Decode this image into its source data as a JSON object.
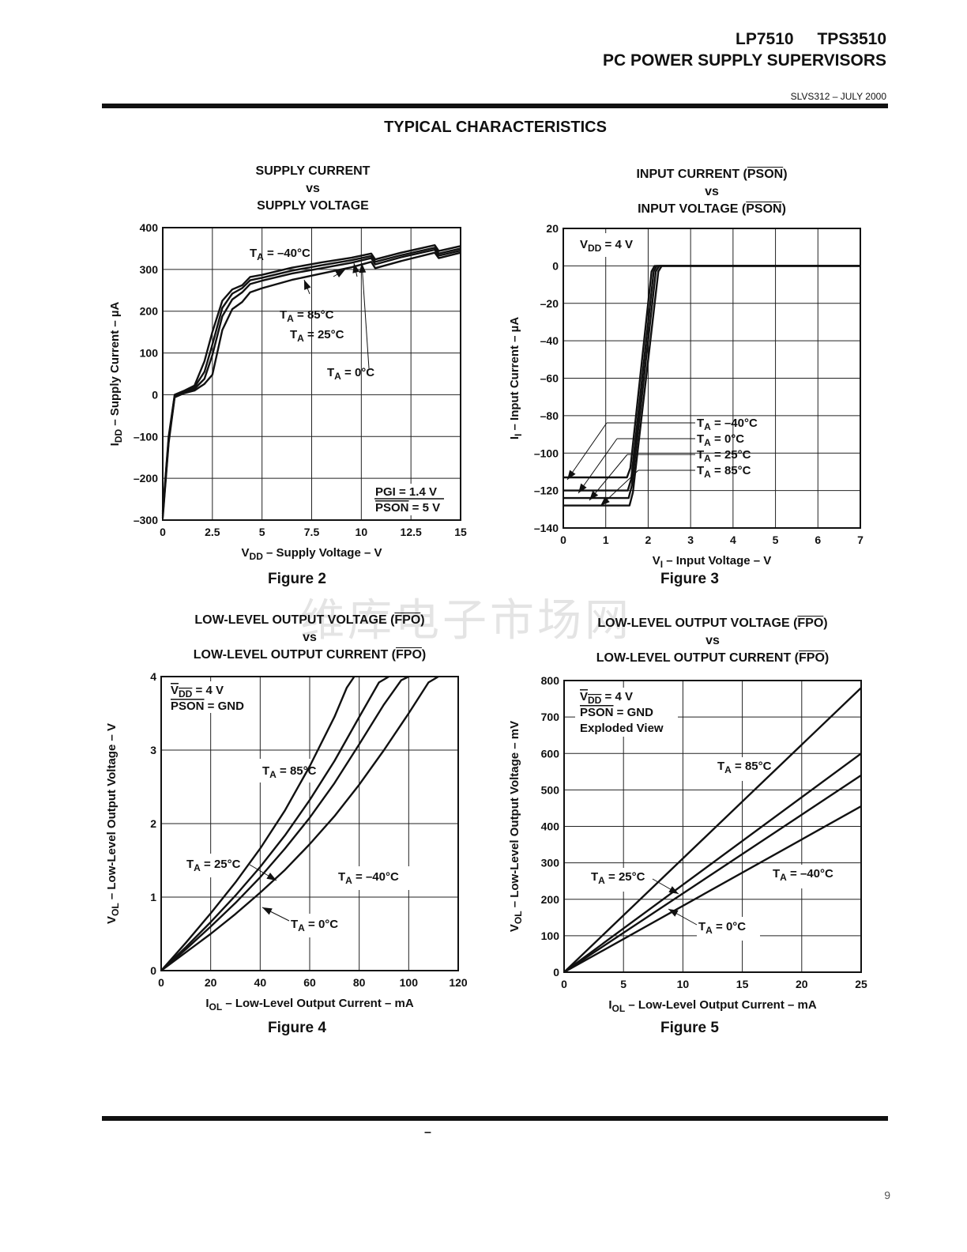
{
  "header": {
    "part_a": "LP7510",
    "part_b": "TPS3510",
    "subtitle": "PC POWER SUPPLY SUPERVISORS",
    "doc_id": "SLVS312 – JULY 2000"
  },
  "section_title": "TYPICAL CHARACTERISTICS",
  "footer": {
    "dash": "–",
    "page_number": "9"
  },
  "watermark": "维库电子市场网",
  "colors": {
    "ink": "#111111",
    "grid": "#222222",
    "paper": "#ffffff"
  },
  "chart_data": [
    {
      "id": "fig2",
      "figure_label": "Figure 2",
      "type": "line",
      "title": {
        "line1": "SUPPLY CURRENT",
        "line2": "vs",
        "line3": "SUPPLY VOLTAGE"
      },
      "xlabel": {
        "pre": "V",
        "sub": "DD",
        "post": " – Supply Voltage – V"
      },
      "ylabel": {
        "pre": "I",
        "sub": "DD",
        "post": " – Supply Current – µA"
      },
      "xlim": [
        0,
        15
      ],
      "ylim": [
        -300,
        400
      ],
      "xticks": [
        "0",
        "2.5",
        "5",
        "7.5",
        "10",
        "12.5",
        "15"
      ],
      "yticks": [
        "400",
        "300",
        "200",
        "100",
        "0",
        "–100",
        "–200",
        "–300"
      ],
      "conditions": [
        {
          "text": "PGI = 1.4 V",
          "overline": ""
        },
        {
          "text": " = 5 V",
          "overline": "PSON"
        }
      ],
      "series": [
        {
          "name": "TA = –40°C",
          "x": [
            0,
            0.3,
            0.6,
            1.1,
            1.6,
            2.1,
            2.5,
            3.0,
            3.5,
            4.0,
            4.4,
            5.0,
            6.5,
            8.0,
            9.5,
            10.5,
            10.7,
            12.0,
            13.7,
            13.9,
            15
          ],
          "y": [
            -280,
            -100,
            0,
            10,
            22,
            80,
            150,
            225,
            252,
            262,
            282,
            287,
            304,
            317,
            328,
            338,
            324,
            340,
            358,
            344,
            356
          ]
        },
        {
          "name": "TA = 0°C",
          "x": [
            0,
            0.3,
            0.6,
            1.1,
            1.6,
            2.1,
            2.5,
            3.0,
            3.5,
            4.0,
            4.4,
            5.0,
            6.5,
            8.0,
            9.5,
            10.5,
            10.7,
            12.0,
            13.7,
            13.9,
            15
          ],
          "y": [
            -285,
            -105,
            -2,
            8,
            18,
            55,
            120,
            208,
            242,
            255,
            274,
            280,
            297,
            310,
            322,
            332,
            318,
            334,
            352,
            338,
            350
          ]
        },
        {
          "name": "TA = 25°C",
          "x": [
            0,
            0.3,
            0.6,
            1.1,
            1.6,
            2.1,
            2.5,
            3.0,
            3.5,
            4.0,
            4.4,
            5.0,
            6.5,
            8.0,
            9.5,
            10.5,
            10.7,
            12.0,
            13.7,
            13.9,
            15
          ],
          "y": [
            -290,
            -110,
            -4,
            6,
            14,
            38,
            95,
            188,
            228,
            245,
            265,
            273,
            290,
            303,
            316,
            327,
            312,
            329,
            347,
            333,
            345
          ]
        },
        {
          "name": "TA = 85°C",
          "x": [
            0,
            0.3,
            0.6,
            1.1,
            1.6,
            2.1,
            2.5,
            3.0,
            3.5,
            4.0,
            4.4,
            5.0,
            6.5,
            8.0,
            9.5,
            10.5,
            10.7,
            12.0,
            13.7,
            13.9,
            15
          ],
          "y": [
            -295,
            -115,
            -6,
            4,
            10,
            26,
            48,
            155,
            205,
            222,
            245,
            255,
            275,
            290,
            305,
            318,
            303,
            320,
            340,
            327,
            340
          ]
        }
      ],
      "labels": [
        {
          "pre": "T",
          "sub": "A",
          "post": " = –40°C"
        },
        {
          "pre": "T",
          "sub": "A",
          "post": " = 85°C"
        },
        {
          "pre": "T",
          "sub": "A",
          "post": " = 25°C"
        },
        {
          "pre": "T",
          "sub": "A",
          "post": " = 0°C"
        }
      ]
    },
    {
      "id": "fig3",
      "figure_label": "Figure 3",
      "type": "line",
      "title": {
        "line1a": "INPUT CURRENT (",
        "line1o": "PSON",
        "line1b": ")",
        "line2": "vs",
        "line3a": "INPUT VOLTAGE (",
        "line3o": "PSON",
        "line3b": ")"
      },
      "xlabel": {
        "pre": "V",
        "sub": "I",
        "post": " – Input Voltage – V"
      },
      "ylabel": {
        "pre": "I",
        "sub": "I",
        "post": " – Input Current – µA"
      },
      "xlim": [
        0,
        7
      ],
      "ylim": [
        -140,
        20
      ],
      "xticks": [
        "0",
        "1",
        "2",
        "3",
        "4",
        "5",
        "6",
        "7"
      ],
      "yticks": [
        "20",
        "0",
        "–20",
        "–40",
        "–60",
        "–80",
        "–100",
        "–120",
        "–140"
      ],
      "conditions": [
        {
          "pre": "V",
          "sub": "DD",
          "post": " = 4 V"
        }
      ],
      "series": [
        {
          "name": "TA = –40°C",
          "x": [
            0,
            1.5,
            1.58,
            2.08,
            2.15,
            7
          ],
          "y": [
            -113,
            -113,
            -108,
            -3,
            0,
            0
          ]
        },
        {
          "name": "TA = 0°C",
          "x": [
            0,
            1.52,
            1.6,
            2.13,
            2.2,
            7
          ],
          "y": [
            -120,
            -120,
            -114,
            -3,
            0,
            0
          ]
        },
        {
          "name": "TA = 25°C",
          "x": [
            0,
            1.54,
            1.62,
            2.18,
            2.26,
            7
          ],
          "y": [
            -124,
            -124,
            -117,
            -3,
            0,
            0
          ]
        },
        {
          "name": "TA = 85°C",
          "x": [
            0,
            1.56,
            1.64,
            2.24,
            2.32,
            7
          ],
          "y": [
            -128,
            -128,
            -121,
            -3,
            0,
            0
          ]
        }
      ],
      "labels": [
        {
          "pre": "T",
          "sub": "A",
          "post": " = –40°C"
        },
        {
          "pre": "T",
          "sub": "A",
          "post": " = 0°C"
        },
        {
          "pre": "T",
          "sub": "A",
          "post": " = 25°C"
        },
        {
          "pre": "T",
          "sub": "A",
          "post": " = 85°C"
        }
      ]
    },
    {
      "id": "fig4",
      "figure_label": "Figure 4",
      "type": "line",
      "title": {
        "line1a": "LOW-LEVEL OUTPUT VOLTAGE (",
        "line1o": "FPO",
        "line1b": ")",
        "line2": "vs",
        "line3a": "LOW-LEVEL OUTPUT CURRENT (",
        "line3o": "FPO",
        "line3b": ")"
      },
      "xlabel": {
        "pre": "I",
        "sub": "OL",
        "post": " – Low-Level Output Current – mA"
      },
      "ylabel": {
        "pre": "V",
        "sub": "OL",
        "post": " – Low-Level Output Voltage – V"
      },
      "xlim": [
        0,
        120
      ],
      "ylim": [
        0,
        4
      ],
      "xticks": [
        "0",
        "20",
        "40",
        "60",
        "80",
        "100",
        "120"
      ],
      "yticks": [
        "4",
        "3",
        "2",
        "1",
        "0"
      ],
      "conditions": [
        {
          "pre": "V",
          "sub": "DD",
          "post": " = 4 V",
          "overline": true
        },
        {
          "text": " = GND",
          "overline": "PSON"
        }
      ],
      "series": [
        {
          "name": "TA = 85°C",
          "x": [
            0,
            10,
            20,
            30,
            40,
            50,
            60,
            70,
            75,
            78
          ],
          "y": [
            0,
            0.38,
            0.78,
            1.2,
            1.66,
            2.18,
            2.78,
            3.45,
            3.85,
            4.0
          ]
        },
        {
          "name": "TA = 25°C",
          "x": [
            0,
            10,
            20,
            30,
            40,
            50,
            60,
            70,
            80,
            88,
            92
          ],
          "y": [
            0,
            0.32,
            0.66,
            1.02,
            1.41,
            1.84,
            2.32,
            2.85,
            3.45,
            3.92,
            4.0
          ]
        },
        {
          "name": "TA = 0°C",
          "x": [
            0,
            10,
            20,
            30,
            40,
            50,
            60,
            70,
            80,
            90,
            97,
            100
          ],
          "y": [
            0,
            0.29,
            0.6,
            0.92,
            1.27,
            1.66,
            2.08,
            2.55,
            3.08,
            3.62,
            3.95,
            4.0
          ]
        },
        {
          "name": "TA = –40°C",
          "x": [
            0,
            10,
            20,
            30,
            40,
            50,
            60,
            70,
            80,
            90,
            100,
            108,
            112
          ],
          "y": [
            0,
            0.25,
            0.5,
            0.77,
            1.06,
            1.37,
            1.72,
            2.1,
            2.53,
            3.0,
            3.5,
            3.92,
            4.0
          ]
        }
      ],
      "labels": [
        {
          "pre": "T",
          "sub": "A",
          "post": " = 85°C"
        },
        {
          "pre": "T",
          "sub": "A",
          "post": " = 25°C"
        },
        {
          "pre": "T",
          "sub": "A",
          "post": " = –40°C"
        },
        {
          "pre": "T",
          "sub": "A",
          "post": " = 0°C"
        }
      ]
    },
    {
      "id": "fig5",
      "figure_label": "Figure 5",
      "type": "line",
      "title": {
        "line1a": "LOW-LEVEL OUTPUT VOLTAGE (",
        "line1o": "FPO",
        "line1b": ")",
        "line2": "vs",
        "line3a": "LOW-LEVEL OUTPUT CURRENT (",
        "line3o": "FPO",
        "line3b": ")"
      },
      "xlabel": {
        "pre": "I",
        "sub": "OL",
        "post": " – Low-Level Output Current – mA"
      },
      "ylabel": {
        "pre": "V",
        "sub": "OL",
        "post": " – Low-Level Output Voltage – mV"
      },
      "xlim": [
        0,
        25
      ],
      "ylim": [
        0,
        800
      ],
      "xticks": [
        "0",
        "5",
        "10",
        "15",
        "20",
        "25"
      ],
      "yticks": [
        "800",
        "700",
        "600",
        "500",
        "400",
        "300",
        "200",
        "100",
        "0"
      ],
      "conditions": [
        {
          "pre": "V",
          "sub": "DD",
          "post": " = 4 V",
          "overline": true
        },
        {
          "text": " = GND",
          "overline": "PSON"
        },
        {
          "text": "Exploded View"
        }
      ],
      "series": [
        {
          "name": "TA = 85°C",
          "x": [
            0,
            25
          ],
          "y": [
            0,
            780
          ]
        },
        {
          "name": "TA = 25°C",
          "x": [
            0,
            25
          ],
          "y": [
            0,
            600
          ]
        },
        {
          "name": "TA = 0°C",
          "x": [
            0,
            25
          ],
          "y": [
            0,
            540
          ]
        },
        {
          "name": "TA = –40°C",
          "x": [
            0,
            25
          ],
          "y": [
            0,
            455
          ]
        }
      ],
      "labels": [
        {
          "pre": "T",
          "sub": "A",
          "post": " = 85°C"
        },
        {
          "pre": "T",
          "sub": "A",
          "post": " = 25°C"
        },
        {
          "pre": "T",
          "sub": "A",
          "post": " = –40°C"
        },
        {
          "pre": "T",
          "sub": "A",
          "post": " = 0°C"
        }
      ]
    }
  ]
}
